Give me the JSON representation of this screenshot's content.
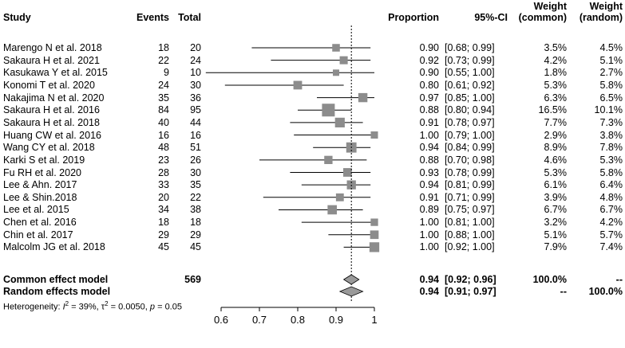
{
  "headers": {
    "study": "Study",
    "events": "Events",
    "total": "Total",
    "proportion": "Proportion",
    "ci": "95%-CI",
    "weight_common_1": "Weight",
    "weight_common_2": "(common)",
    "weight_random_1": "Weight",
    "weight_random_2": "(random)"
  },
  "studies": [
    {
      "name": "Marengo N et al. 2018",
      "events": "18",
      "total": "20",
      "prop": "0.90",
      "ci": "[0.68; 0.99]",
      "wc": "3.5%",
      "wr": "4.5%"
    },
    {
      "name": "Sakaura H et al. 2021",
      "events": "22",
      "total": "24",
      "prop": "0.92",
      "ci": "[0.73; 0.99]",
      "wc": "4.2%",
      "wr": "5.1%"
    },
    {
      "name": "Kasukawa Y et al. 2015",
      "events": "9",
      "total": "10",
      "prop": "0.90",
      "ci": "[0.55; 1.00]",
      "wc": "1.8%",
      "wr": "2.7%"
    },
    {
      "name": "Konomi T et al. 2020",
      "events": "24",
      "total": "30",
      "prop": "0.80",
      "ci": "[0.61; 0.92]",
      "wc": "5.3%",
      "wr": "5.8%"
    },
    {
      "name": "Nakajima N et al. 2020",
      "events": "35",
      "total": "36",
      "prop": "0.97",
      "ci": "[0.85; 1.00]",
      "wc": "6.3%",
      "wr": "6.5%"
    },
    {
      "name": "Sakaura H et al. 2016",
      "events": "84",
      "total": "95",
      "prop": "0.88",
      "ci": "[0.80; 0.94]",
      "wc": "16.5%",
      "wr": "10.1%"
    },
    {
      "name": "Sakaura H et al. 2018",
      "events": "40",
      "total": "44",
      "prop": "0.91",
      "ci": "[0.78; 0.97]",
      "wc": "7.7%",
      "wr": "7.3%"
    },
    {
      "name": "Huang CW et al. 2016",
      "events": "16",
      "total": "16",
      "prop": "1.00",
      "ci": "[0.79; 1.00]",
      "wc": "2.9%",
      "wr": "3.8%"
    },
    {
      "name": "Wang CY et al. 2018",
      "events": "48",
      "total": "51",
      "prop": "0.94",
      "ci": "[0.84; 0.99]",
      "wc": "8.9%",
      "wr": "7.8%"
    },
    {
      "name": "Karki S et al. 2019",
      "events": "23",
      "total": "26",
      "prop": "0.88",
      "ci": "[0.70; 0.98]",
      "wc": "4.6%",
      "wr": "5.3%"
    },
    {
      "name": "Fu RH et al. 2020",
      "events": "28",
      "total": "30",
      "prop": "0.93",
      "ci": "[0.78; 0.99]",
      "wc": "5.3%",
      "wr": "5.8%"
    },
    {
      "name": "Lee & Ahn. 2017",
      "events": "33",
      "total": "35",
      "prop": "0.94",
      "ci": "[0.81; 0.99]",
      "wc": "6.1%",
      "wr": "6.4%"
    },
    {
      "name": "Lee & Shin.2018",
      "events": "20",
      "total": "22",
      "prop": "0.91",
      "ci": "[0.71; 0.99]",
      "wc": "3.9%",
      "wr": "4.8%"
    },
    {
      "name": "Lee et al. 2015",
      "events": "34",
      "total": "38",
      "prop": "0.89",
      "ci": "[0.75; 0.97]",
      "wc": "6.7%",
      "wr": "6.7%"
    },
    {
      "name": "Chen et al. 2016",
      "events": "18",
      "total": "18",
      "prop": "1.00",
      "ci": "[0.81; 1.00]",
      "wc": "3.2%",
      "wr": "4.2%"
    },
    {
      "name": "Chin et al. 2017",
      "events": "29",
      "total": "29",
      "prop": "1.00",
      "ci": "[0.88; 1.00]",
      "wc": "5.1%",
      "wr": "5.7%"
    },
    {
      "name": "Malcolm  JG et al. 2018",
      "events": "45",
      "total": "45",
      "prop": "1.00",
      "ci": "[0.92; 1.00]",
      "wc": "7.9%",
      "wr": "7.4%"
    }
  ],
  "common": {
    "name": "Common effect model",
    "total": "569",
    "prop": "0.94",
    "ci": "[0.92; 0.96]",
    "wc": "100.0%",
    "wr": "--"
  },
  "random": {
    "name": "Random effects model",
    "prop": "0.94",
    "ci": "[0.91; 0.97]",
    "wc": "--",
    "wr": "100.0%"
  },
  "heterogeneity": {
    "prefix": "Heterogeneity: ",
    "i2_sym": "I",
    "i2_val": " = 39%, ",
    "tau_sym": "τ",
    "tau_val": " = 0.0050, ",
    "p_sym": "p",
    "p_val": " = 0.05"
  },
  "chart_data": {
    "type": "forest",
    "xlim": [
      0.6,
      1.0
    ],
    "ticks": [
      "0.6",
      "0.7",
      "0.8",
      "0.9",
      "1"
    ],
    "tick_values": [
      0.6,
      0.7,
      0.8,
      0.9,
      1.0
    ],
    "reference_line": 0.94,
    "points": [
      {
        "est": 0.9,
        "lo": 0.68,
        "hi": 0.99,
        "w": 3.5
      },
      {
        "est": 0.92,
        "lo": 0.73,
        "hi": 0.99,
        "w": 4.2
      },
      {
        "est": 0.9,
        "lo": 0.55,
        "hi": 1.0,
        "w": 1.8
      },
      {
        "est": 0.8,
        "lo": 0.61,
        "hi": 0.92,
        "w": 5.3
      },
      {
        "est": 0.97,
        "lo": 0.85,
        "hi": 1.0,
        "w": 6.3
      },
      {
        "est": 0.88,
        "lo": 0.8,
        "hi": 0.94,
        "w": 16.5
      },
      {
        "est": 0.91,
        "lo": 0.78,
        "hi": 0.97,
        "w": 7.7
      },
      {
        "est": 1.0,
        "lo": 0.79,
        "hi": 1.0,
        "w": 2.9
      },
      {
        "est": 0.94,
        "lo": 0.84,
        "hi": 0.99,
        "w": 8.9
      },
      {
        "est": 0.88,
        "lo": 0.7,
        "hi": 0.98,
        "w": 4.6
      },
      {
        "est": 0.93,
        "lo": 0.78,
        "hi": 0.99,
        "w": 5.3
      },
      {
        "est": 0.94,
        "lo": 0.81,
        "hi": 0.99,
        "w": 6.1
      },
      {
        "est": 0.91,
        "lo": 0.71,
        "hi": 0.99,
        "w": 3.9
      },
      {
        "est": 0.89,
        "lo": 0.75,
        "hi": 0.97,
        "w": 6.7
      },
      {
        "est": 1.0,
        "lo": 0.81,
        "hi": 1.0,
        "w": 3.2
      },
      {
        "est": 1.0,
        "lo": 0.88,
        "hi": 1.0,
        "w": 5.1
      },
      {
        "est": 1.0,
        "lo": 0.92,
        "hi": 1.0,
        "w": 7.9
      }
    ],
    "diamonds": [
      {
        "name": "common",
        "est": 0.94,
        "lo": 0.92,
        "hi": 0.96
      },
      {
        "name": "random",
        "est": 0.94,
        "lo": 0.91,
        "hi": 0.97
      }
    ],
    "colors": {
      "box": "#8c8c8c",
      "diamond": "#9a9a9a",
      "line": "#000000"
    }
  }
}
